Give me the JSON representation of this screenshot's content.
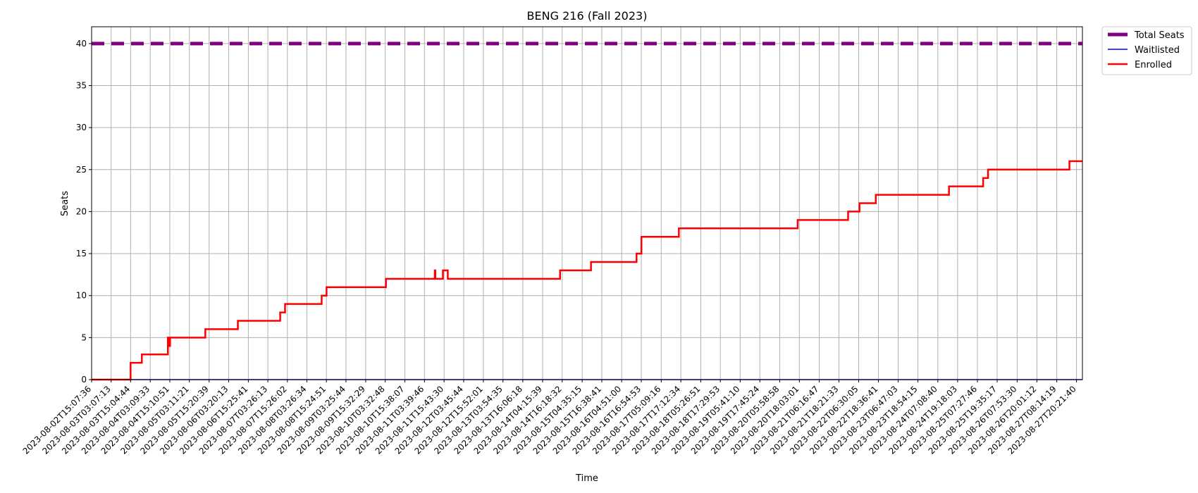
{
  "chart_data": {
    "type": "line",
    "title": "BENG 216 (Fall 2023)",
    "xlabel": "Time",
    "ylabel": "Seats",
    "ylim": [
      0,
      42
    ],
    "yticks": [
      0,
      5,
      10,
      15,
      20,
      25,
      30,
      35,
      40
    ],
    "grid": true,
    "legend_placement": "outside-top-right",
    "colors": {
      "total": "#800080",
      "waitlisted": "#0000ff",
      "enrolled": "#ff0000",
      "grid": "#b0b0b0"
    },
    "x_range": [
      "2023-08-02T15:07:36",
      "2023-08-28T00:00:00"
    ],
    "x_tick_labels": [
      "2023-08-02T15:07:36",
      "2023-08-03T03:07:13",
      "2023-08-03T15:04:44",
      "2023-08-04T03:09:33",
      "2023-08-04T15:10:51",
      "2023-08-05T03:11:21",
      "2023-08-05T15:20:39",
      "2023-08-06T03:20:13",
      "2023-08-06T15:25:41",
      "2023-08-07T03:26:13",
      "2023-08-07T15:26:02",
      "2023-08-08T03:26:34",
      "2023-08-08T15:24:51",
      "2023-08-09T03:25:44",
      "2023-08-09T15:32:29",
      "2023-08-10T03:32:48",
      "2023-08-10T15:38:07",
      "2023-08-11T03:39:46",
      "2023-08-11T15:43:30",
      "2023-08-12T03:45:44",
      "2023-08-12T15:52:01",
      "2023-08-13T03:54:35",
      "2023-08-13T16:06:18",
      "2023-08-14T04:15:39",
      "2023-08-14T16:18:32",
      "2023-08-15T04:35:15",
      "2023-08-15T16:38:41",
      "2023-08-16T04:51:00",
      "2023-08-16T16:54:53",
      "2023-08-17T05:09:16",
      "2023-08-17T17:12:34",
      "2023-08-18T05:26:51",
      "2023-08-18T17:29:53",
      "2023-08-19T05:41:10",
      "2023-08-19T17:45:24",
      "2023-08-20T05:58:58",
      "2023-08-20T18:03:01",
      "2023-08-21T06:16:47",
      "2023-08-21T18:21:33",
      "2023-08-22T06:30:05",
      "2023-08-22T18:36:41",
      "2023-08-23T06:47:03",
      "2023-08-23T18:54:15",
      "2023-08-24T07:08:40",
      "2023-08-24T19:18:03",
      "2023-08-25T07:27:46",
      "2023-08-25T19:35:17",
      "2023-08-26T07:53:30",
      "2023-08-26T20:01:12",
      "2023-08-27T08:14:19",
      "2023-08-27T20:21:40"
    ],
    "series": [
      {
        "name": "Total Seats",
        "style": "dashed",
        "x": [
          "2023-08-02T15:07:36",
          "2023-08-28T00:00:00"
        ],
        "values": [
          40,
          40
        ]
      },
      {
        "name": "Waitlisted",
        "style": "solid",
        "x": [
          "2023-08-02T15:07:36",
          "2023-08-28T00:00:00"
        ],
        "values": [
          0,
          0
        ]
      },
      {
        "name": "Enrolled",
        "style": "step",
        "x": [
          "2023-08-02T15:07:36",
          "2023-08-03T15:04:44",
          "2023-08-03T22:00:00",
          "2023-08-04T14:00:00",
          "2023-08-04T15:00:00",
          "2023-08-04T15:20:00",
          "2023-08-04T15:40:00",
          "2023-08-05T13:00:00",
          "2023-08-06T09:00:00",
          "2023-08-07T11:00:00",
          "2023-08-07T14:00:00",
          "2023-08-08T12:30:00",
          "2023-08-08T15:30:00",
          "2023-08-10T04:00:00",
          "2023-08-11T10:00:00",
          "2023-08-11T10:20:00",
          "2023-08-11T15:00:00",
          "2023-08-11T18:00:00",
          "2023-08-14T15:00:00",
          "2023-08-15T10:00:00",
          "2023-08-16T14:00:00",
          "2023-08-16T17:00:00",
          "2023-08-17T16:00:00",
          "2023-08-20T17:00:00",
          "2023-08-22T00:00:00",
          "2023-08-22T07:00:00",
          "2023-08-22T17:00:00",
          "2023-08-24T14:00:00",
          "2023-08-25T11:00:00",
          "2023-08-25T14:00:00",
          "2023-08-27T16:00:00"
        ],
        "values": [
          0,
          2,
          3,
          5,
          4,
          5,
          5,
          6,
          7,
          8,
          9,
          10,
          11,
          12,
          13,
          12,
          13,
          12,
          13,
          14,
          15,
          17,
          18,
          19,
          20,
          21,
          22,
          23,
          24,
          25,
          26
        ]
      }
    ]
  }
}
